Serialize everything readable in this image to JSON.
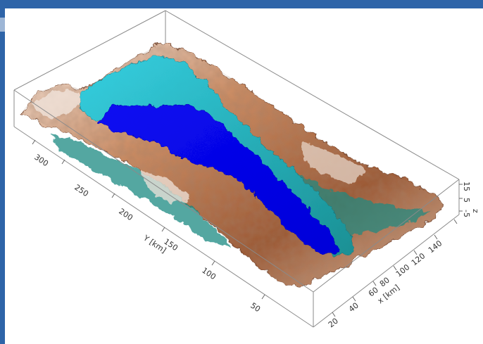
{
  "axes": {
    "y_axis": {
      "label": "Y [km]",
      "ticks": [
        "50",
        "100",
        "150",
        "200",
        "250",
        "300"
      ]
    },
    "x_axis": {
      "label": "x [km]",
      "ticks": [
        "20",
        "40",
        "60",
        "80",
        "100",
        "120",
        "140"
      ]
    },
    "z_axis": {
      "label": "z",
      "ticks": [
        "-5",
        "5",
        "15"
      ]
    }
  },
  "colors": {
    "water": "#0000ee",
    "shallow_water": "#2bc3d6",
    "terrain_low": "#1d8a82",
    "terrain_mid": "#b9714a",
    "terrain_high": "#f1e4db",
    "box_edge": "#8a8a8a",
    "frame": "#2e64a8"
  }
}
